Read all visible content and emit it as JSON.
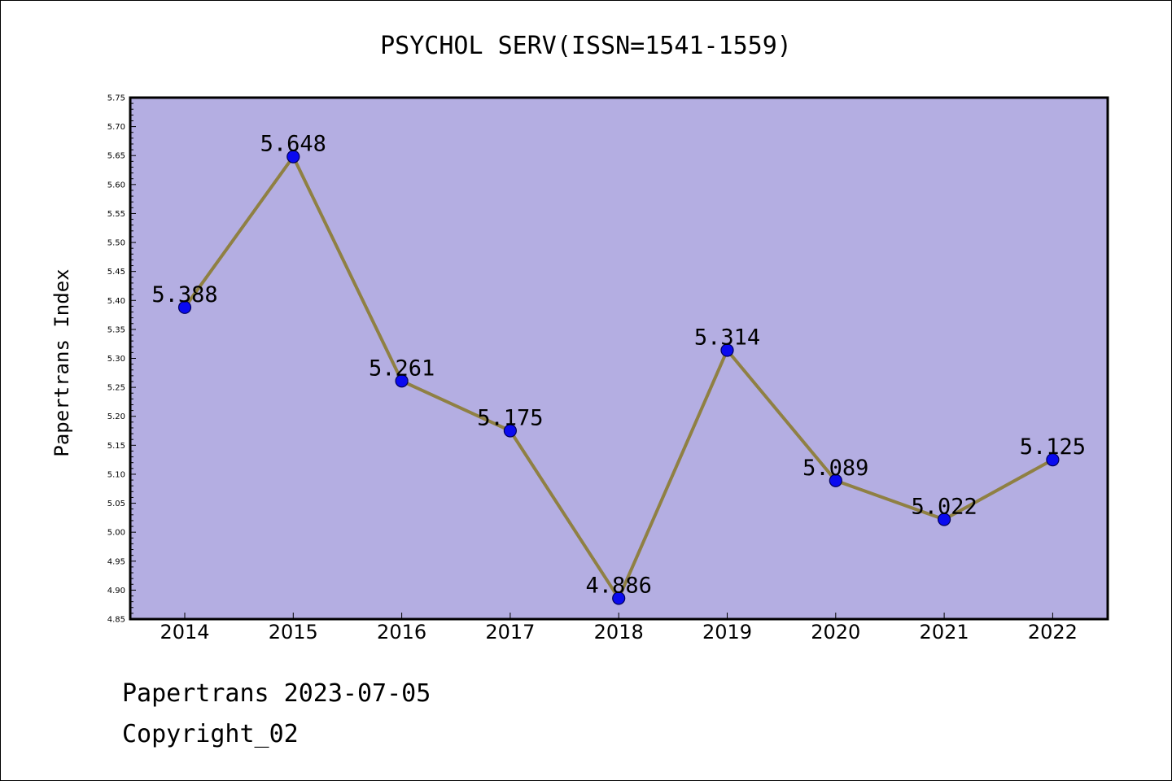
{
  "chart_data": {
    "type": "line",
    "title": "PSYCHOL SERV(ISSN=1541-1559)",
    "ylabel": "Papertrans Index",
    "xlabel": "",
    "categories": [
      "2014",
      "2015",
      "2016",
      "2017",
      "2018",
      "2019",
      "2020",
      "2021",
      "2022"
    ],
    "values": [
      5.388,
      5.648,
      5.261,
      5.175,
      4.886,
      5.314,
      5.089,
      5.022,
      5.125
    ],
    "data_labels": [
      "5.388",
      "5.648",
      "5.261",
      "5.175",
      "4.886",
      "5.314",
      "5.089",
      "5.022",
      "5.125"
    ],
    "ylim": [
      4.85,
      5.75
    ],
    "y_ticks": [
      "4.85",
      "4.90",
      "4.95",
      "5.00",
      "5.05",
      "5.10",
      "5.15",
      "5.20",
      "5.25",
      "5.30",
      "5.35",
      "5.40",
      "5.45",
      "5.50",
      "5.55",
      "5.60",
      "5.65",
      "5.70",
      "5.75"
    ],
    "grid": false,
    "legend": "none",
    "colors": {
      "plot_background": "#b4aee2",
      "line": "#8f8043",
      "marker_fill": "#0a0af0",
      "marker_edge": "#00005a"
    }
  },
  "footer": {
    "source_line": "Papertrans 2023-07-05",
    "copyright_line": "Copyright_02"
  }
}
